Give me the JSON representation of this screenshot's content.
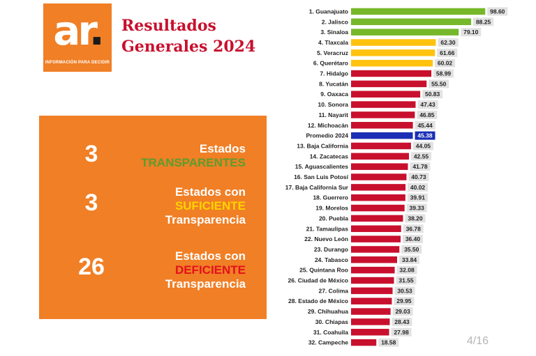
{
  "logo": {
    "mark_main": "ar",
    "mark_dot": ".",
    "tagline": "INFORMACIÓN PARA DECIDIR"
  },
  "title": {
    "line1": "Resultados",
    "line2": "Generales 2024"
  },
  "summary": [
    {
      "count": "3",
      "line1": "Estados",
      "line2": "TRANSPARENTES",
      "line3": ""
    },
    {
      "count": "3",
      "line1": "Estados con",
      "line2": "SUFICIENTE",
      "line3": "Transparencia"
    },
    {
      "count": "26",
      "line1": "Estados con",
      "line2": "DEFICIENTE",
      "line3": "Transparencia"
    }
  ],
  "page_indicator": "4/16",
  "colors": {
    "green": "#76b82a",
    "yellow": "#ffc20e",
    "red": "#c8102e",
    "blue": "#1a2fb5",
    "orange": "#f07f26"
  },
  "chart_data": {
    "type": "bar",
    "orientation": "horizontal",
    "xlim": [
      0,
      100
    ],
    "grid": false,
    "categories": [
      "1. Guanajuato",
      "2. Jalisco",
      "3. Sinaloa",
      "4. Tlaxcala",
      "5. Veracruz",
      "6. Querétaro",
      "7. Hidalgo",
      "8. Yucatán",
      "9. Oaxaca",
      "10. Sonora",
      "11. Nayarit",
      "12. Michoacán",
      "Promedio 2024",
      "13. Baja California",
      "14. Zacatecas",
      "15. Aguascalientes",
      "16. San Luis Potosí",
      "17. Baja California Sur",
      "18. Guerrero",
      "19. Morelos",
      "20. Puebla",
      "21. Tamaulipas",
      "22. Nuevo León",
      "23. Durango",
      "24. Tabasco",
      "25. Quintana Roo",
      "26. Ciudad de México",
      "27. Colima",
      "28. Estado de México",
      "29. Chihuahua",
      "30. Chiapas",
      "31. Coahuila",
      "32. Campeche"
    ],
    "values": [
      98.6,
      88.25,
      79.1,
      62.3,
      61.66,
      60.02,
      58.99,
      55.5,
      50.83,
      47.43,
      46.85,
      45.44,
      45.38,
      44.05,
      42.55,
      41.78,
      40.73,
      40.02,
      39.91,
      39.33,
      38.2,
      36.78,
      36.4,
      35.5,
      33.84,
      32.08,
      31.55,
      30.53,
      29.95,
      29.03,
      28.43,
      27.98,
      18.58
    ],
    "labels": [
      "98.60",
      "88.25",
      "79.10",
      "62.30",
      "61.66",
      "60.02",
      "58.99",
      "55.50",
      "50.83",
      "47.43",
      "46.85",
      "45.44",
      "45.38",
      "44.05",
      "42.55",
      "41.78",
      "40.73",
      "40.02",
      "39.91",
      "39.33",
      "38.20",
      "36.78",
      "36.40",
      "35.50",
      "33.84",
      "32.08",
      "31.55",
      "30.53",
      "29.95",
      "29.03",
      "28.43",
      "27.98",
      "18.58"
    ],
    "groups": [
      "green",
      "green",
      "green",
      "yellow",
      "yellow",
      "yellow",
      "red",
      "red",
      "red",
      "red",
      "red",
      "red",
      "blue",
      "red",
      "red",
      "red",
      "red",
      "red",
      "red",
      "red",
      "red",
      "red",
      "red",
      "red",
      "red",
      "red",
      "red",
      "red",
      "red",
      "red",
      "red",
      "red",
      "red"
    ]
  }
}
